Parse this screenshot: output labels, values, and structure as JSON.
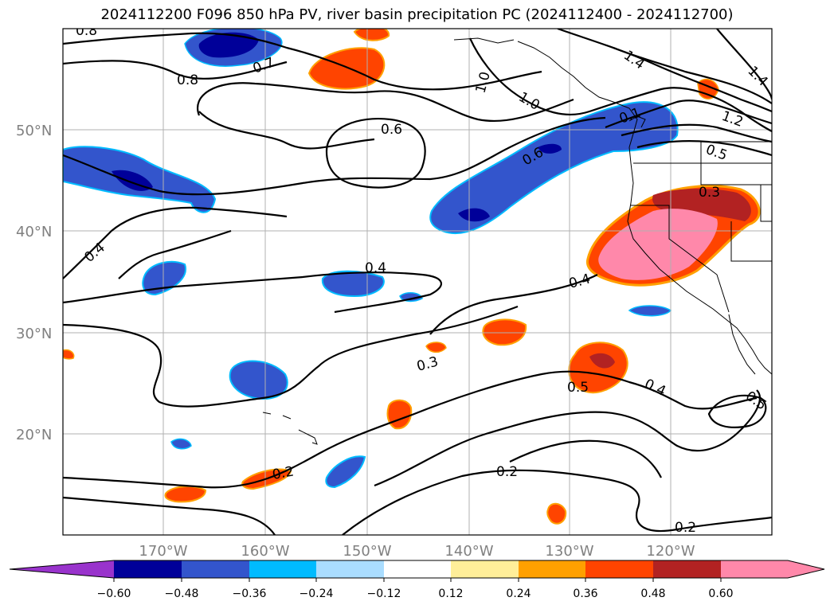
{
  "title": "2024112200 F096 850 hPa PV, river basin precipitation PC (2024112400 - 2024112700)",
  "map": {
    "lat_labels": [
      "50°N",
      "40°N",
      "30°N",
      "20°N"
    ],
    "lon_labels": [
      "170°W",
      "160°W",
      "150°W",
      "140°W",
      "130°W",
      "120°W"
    ],
    "contour_labels": [
      "0.8",
      "0.8",
      "0.7",
      "0.6",
      "0.4",
      "0.4",
      "0.4",
      "0.3",
      "0.3",
      "0.5",
      "0.4",
      "0.5",
      "0.2",
      "0.2",
      "0.2",
      "1.0",
      "1.0",
      "1.4",
      "1.4",
      "1.2",
      "0.5",
      "0.6",
      "0.1"
    ],
    "colors": {
      "purple": "#9933cc",
      "navy": "#000099",
      "royal": "#3355cc",
      "sky": "#00bbff",
      "pale_blue": "#aaddff",
      "white": "#ffffff",
      "pale_yellow": "#ffee99",
      "orange": "#ffa000",
      "red_orange": "#ff4400",
      "dark_red": "#b22222",
      "pink": "#ff88aa"
    }
  },
  "colorbar": {
    "ticks": [
      "−0.60",
      "−0.48",
      "−0.36",
      "−0.24",
      "−0.12",
      "0.12",
      "0.24",
      "0.36",
      "0.48",
      "0.60"
    ]
  }
}
